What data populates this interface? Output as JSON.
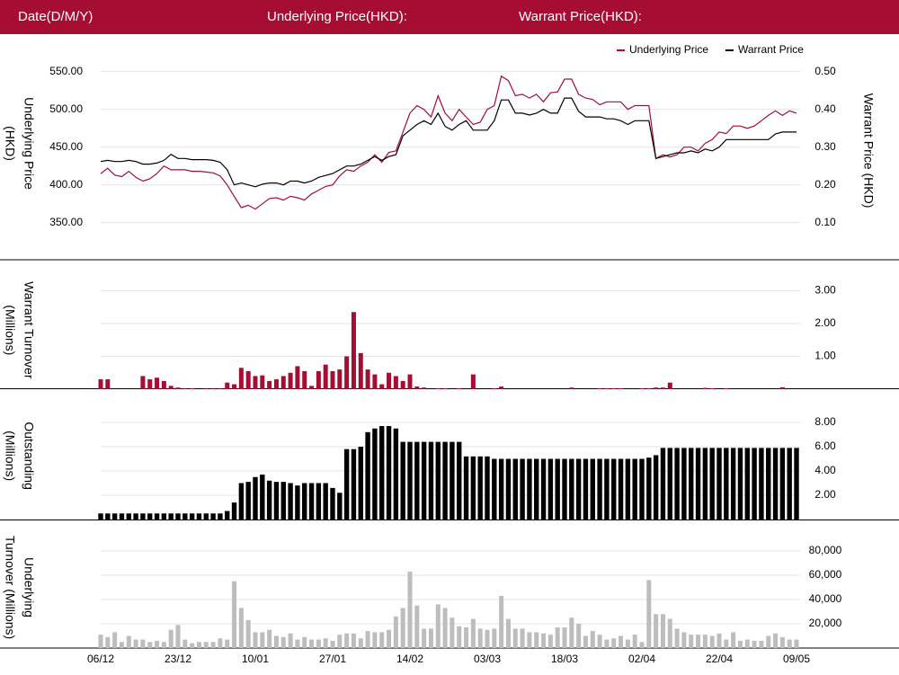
{
  "header": {
    "date": "Date(D/M/Y)",
    "underlying": "Underlying Price(HKD):",
    "warrant": "Warrant Price(HKD):"
  },
  "chart_data": [
    {
      "type": "line",
      "ylabel": [
        "Underlying Price",
        "(HKD)"
      ],
      "y2label": "Warrant  Price (HKD)",
      "grid": true,
      "legend": "top-right",
      "ylim": [
        320,
        590
      ],
      "yticks": [
        {
          "value": 350,
          "label": "350.00"
        },
        {
          "value": 400,
          "label": "400.00"
        },
        {
          "value": 450,
          "label": "450.00"
        },
        {
          "value": 500,
          "label": "500.00"
        },
        {
          "value": 550,
          "label": "550.00"
        }
      ],
      "y2lim": [
        0.04,
        0.58
      ],
      "y2ticks": [
        {
          "value": 0.1,
          "label": "0.10"
        },
        {
          "value": 0.2,
          "label": "0.20"
        },
        {
          "value": 0.3,
          "label": "0.30"
        },
        {
          "value": 0.4,
          "label": "0.40"
        },
        {
          "value": 0.5,
          "label": "0.50"
        }
      ],
      "series": [
        {
          "name": "Underlying Price",
          "color": "#a50d32",
          "values": [
            415,
            422,
            413,
            411,
            418,
            410,
            405,
            408,
            415,
            425,
            420,
            420,
            420,
            418,
            418,
            417,
            416,
            412,
            400,
            385,
            370,
            373,
            368,
            375,
            382,
            383,
            380,
            385,
            383,
            380,
            388,
            393,
            398,
            400,
            412,
            420,
            418,
            425,
            430,
            440,
            430,
            443,
            445,
            470,
            495,
            505,
            500,
            490,
            518,
            495,
            485,
            500,
            490,
            480,
            483,
            500,
            505,
            544,
            538,
            518,
            520,
            515,
            520,
            510,
            522,
            523,
            540,
            540,
            520,
            515,
            513,
            506,
            510,
            510,
            510,
            500,
            505,
            505,
            505,
            435,
            440,
            437,
            440,
            450,
            450,
            445,
            455,
            460,
            470,
            468,
            478,
            478,
            475,
            478,
            485,
            492,
            498,
            492,
            498,
            495
          ]
        },
        {
          "name": "Warrant Price",
          "color": "#000000",
          "axis": "y2",
          "values": [
            0.262,
            0.265,
            0.262,
            0.262,
            0.265,
            0.262,
            0.255,
            0.255,
            0.258,
            0.265,
            0.281,
            0.27,
            0.27,
            0.267,
            0.267,
            0.267,
            0.265,
            0.26,
            0.24,
            0.2,
            0.205,
            0.2,
            0.195,
            0.202,
            0.205,
            0.205,
            0.2,
            0.21,
            0.21,
            0.205,
            0.21,
            0.22,
            0.225,
            0.23,
            0.24,
            0.25,
            0.25,
            0.255,
            0.265,
            0.275,
            0.265,
            0.275,
            0.28,
            0.33,
            0.345,
            0.36,
            0.37,
            0.36,
            0.39,
            0.355,
            0.345,
            0.36,
            0.37,
            0.345,
            0.345,
            0.345,
            0.37,
            0.425,
            0.425,
            0.39,
            0.39,
            0.385,
            0.39,
            0.4,
            0.39,
            0.39,
            0.43,
            0.43,
            0.395,
            0.38,
            0.38,
            0.38,
            0.375,
            0.375,
            0.37,
            0.36,
            0.37,
            0.37,
            0.37,
            0.27,
            0.275,
            0.28,
            0.285,
            0.285,
            0.29,
            0.285,
            0.295,
            0.29,
            0.3,
            0.32,
            0.32,
            0.32,
            0.32,
            0.32,
            0.32,
            0.32,
            0.335,
            0.34,
            0.34,
            0.34
          ]
        }
      ]
    },
    {
      "type": "bar",
      "ylabel": [
        "Warrant  Turnover",
        "(Millions)"
      ],
      "color": "#a50d32",
      "grid": true,
      "ylim": [
        0,
        3.6
      ],
      "yticks": [
        {
          "value": 1,
          "label": "1.00"
        },
        {
          "value": 2,
          "label": "2.00"
        },
        {
          "value": 3,
          "label": "3.00"
        }
      ],
      "values": [
        0.3,
        0.3,
        0,
        0,
        0,
        0,
        0.4,
        0.3,
        0.35,
        0.25,
        0.1,
        0.05,
        0.02,
        0.03,
        0,
        0.02,
        0.02,
        0.02,
        0.2,
        0.15,
        0.65,
        0.55,
        0.4,
        0.42,
        0.25,
        0.3,
        0.4,
        0.5,
        0.7,
        0.55,
        0.1,
        0.55,
        0.75,
        0.55,
        0.6,
        1.0,
        2.35,
        1.1,
        0.6,
        0.45,
        0.15,
        0.5,
        0.4,
        0.25,
        0.45,
        0.08,
        0.05,
        0,
        0.03,
        0.03,
        0,
        0.03,
        0,
        0.45,
        0,
        0,
        0.03,
        0.08,
        0,
        0,
        0,
        0,
        0,
        0,
        0,
        0,
        0,
        0.05,
        0,
        0,
        0,
        0.03,
        0.03,
        0.03,
        0.03,
        0,
        0,
        0.03,
        0.03,
        0.05,
        0.05,
        0.2,
        0,
        0,
        0,
        0,
        0.04,
        0.03,
        0,
        0.03,
        0,
        0,
        0,
        0,
        0,
        0,
        0,
        0.06,
        0,
        0
      ]
    },
    {
      "type": "bar",
      "ylabel": [
        "Outstanding",
        "(Millions)"
      ],
      "color": "#000000",
      "grid": true,
      "ylim": [
        0,
        10.5
      ],
      "yticks": [
        {
          "value": 2,
          "label": "2.00"
        },
        {
          "value": 4,
          "label": "4.00"
        },
        {
          "value": 6,
          "label": "6.00"
        },
        {
          "value": 8,
          "label": "8.00"
        }
      ],
      "values": [
        0.5,
        0.5,
        0.5,
        0.5,
        0.5,
        0.5,
        0.5,
        0.5,
        0.5,
        0.5,
        0.5,
        0.5,
        0.5,
        0.5,
        0.5,
        0.5,
        0.5,
        0.5,
        0.7,
        1.4,
        3.0,
        3.1,
        3.5,
        3.7,
        3.2,
        3.1,
        3.1,
        3.0,
        2.8,
        3.0,
        3.0,
        3.0,
        3.0,
        2.6,
        2.2,
        5.8,
        5.8,
        6.0,
        7.2,
        7.5,
        7.7,
        7.7,
        7.5,
        6.4,
        6.4,
        6.4,
        6.4,
        6.4,
        6.4,
        6.4,
        6.4,
        6.4,
        5.2,
        5.2,
        5.2,
        5.2,
        5.0,
        5.0,
        5.0,
        5.0,
        5.0,
        5.0,
        5.0,
        5.0,
        5.0,
        5.0,
        5.0,
        5.0,
        5.0,
        5.0,
        5.0,
        5.0,
        5.0,
        5.0,
        5.0,
        5.0,
        5.0,
        5.0,
        5.1,
        5.3,
        5.9,
        5.9,
        5.9,
        5.9,
        5.9,
        5.9,
        5.9,
        5.9,
        5.9,
        5.9,
        5.9,
        5.9,
        5.9,
        5.9,
        5.9,
        5.9,
        5.9,
        5.9,
        5.9,
        5.9
      ]
    },
    {
      "type": "bar",
      "ylabel": [
        "Underlying",
        "Turnover (Millions)"
      ],
      "color": "#bdbdbd",
      "grid": true,
      "ylim": [
        0,
        100000
      ],
      "yticks": [
        {
          "value": 20000,
          "label": "20,000"
        },
        {
          "value": 40000,
          "label": "40,000"
        },
        {
          "value": 60000,
          "label": "60,000"
        },
        {
          "value": 80000,
          "label": "80,000"
        }
      ],
      "categories": [
        "06/12",
        null,
        null,
        null,
        null,
        null,
        null,
        null,
        null,
        null,
        null,
        "23/12",
        null,
        null,
        null,
        null,
        null,
        null,
        null,
        null,
        null,
        null,
        "10/01",
        null,
        null,
        null,
        null,
        null,
        null,
        null,
        null,
        null,
        null,
        "27/01",
        null,
        null,
        null,
        null,
        null,
        null,
        null,
        null,
        null,
        null,
        "14/02",
        null,
        null,
        null,
        null,
        null,
        null,
        null,
        null,
        null,
        null,
        "03/03",
        null,
        null,
        null,
        null,
        null,
        null,
        null,
        null,
        null,
        null,
        "18/03",
        null,
        null,
        null,
        null,
        null,
        null,
        null,
        null,
        null,
        null,
        "02/04",
        null,
        null,
        null,
        null,
        null,
        null,
        null,
        null,
        null,
        null,
        "22/04",
        null,
        null,
        null,
        null,
        null,
        null,
        null,
        null,
        null,
        null,
        "09/05"
      ],
      "values": [
        11000,
        9000,
        13000,
        5000,
        10000,
        7000,
        7000,
        5000,
        6000,
        5000,
        15000,
        19000,
        7000,
        4000,
        5000,
        5000,
        5000,
        8000,
        7000,
        55000,
        33000,
        23000,
        13000,
        13000,
        15000,
        10000,
        9000,
        12000,
        7000,
        9000,
        7000,
        7000,
        8000,
        6000,
        11000,
        12000,
        12000,
        8000,
        14000,
        13000,
        13000,
        15000,
        26000,
        33000,
        63000,
        35000,
        16000,
        16000,
        36000,
        33000,
        25000,
        18000,
        17000,
        24000,
        16000,
        15000,
        16000,
        43000,
        24000,
        16000,
        16000,
        13000,
        13000,
        12000,
        11000,
        17000,
        17000,
        25000,
        20000,
        10000,
        14000,
        11000,
        7000,
        8000,
        10000,
        7000,
        11000,
        5000,
        56000,
        28000,
        28000,
        24000,
        16000,
        13000,
        11000,
        11000,
        11000,
        10000,
        12000,
        7000,
        13000,
        6000,
        7000,
        6000,
        6000,
        10000,
        12000,
        9000,
        7000,
        7000
      ]
    }
  ]
}
